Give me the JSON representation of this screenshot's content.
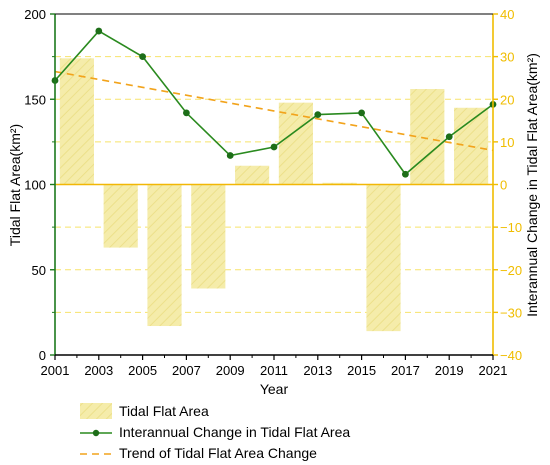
{
  "colors": {
    "bar_fill": "#f5ecaa",
    "bar_hatch": "#ece08a",
    "line": "#2a8a1f",
    "line_marker": "#1d6e18",
    "trend": "#f2a31b",
    "left_axis": "#1d7a1d",
    "right_axis": "#f0bd00",
    "grid": "#f7e36b",
    "zero_line": "#f2b705"
  },
  "chart_data": {
    "type": "bar",
    "xlabel": "Year",
    "ylabel_left": "Tidal Flat Area(km²)",
    "ylabel_right": "Interannual Change in Tidal Flat Area(km²)",
    "x_range": [
      2001,
      2021
    ],
    "x_ticks": [
      "2001",
      "2003",
      "2005",
      "2007",
      "2009",
      "2011",
      "2013",
      "2015",
      "2017",
      "2019",
      "2021"
    ],
    "y_left": {
      "range": [
        0,
        200
      ],
      "ticks": [
        "0",
        "50",
        "100",
        "150",
        "200"
      ]
    },
    "y_right": {
      "range": [
        -40,
        40
      ],
      "ticks": [
        "40",
        "30",
        "20",
        "10",
        "0",
        "−10",
        "−20",
        "−30",
        "−40"
      ]
    },
    "grid": "horizontal dashed at right-axis ticks",
    "legend_position": "bottom",
    "series": [
      {
        "name": "Tidal Flat Area",
        "kind": "bar",
        "axis": "left",
        "x": [
          2002,
          2004,
          2006,
          2008,
          2010,
          2012,
          2014,
          2016,
          2018,
          2020
        ],
        "values": [
          174,
          63,
          17,
          39,
          111,
          148,
          101,
          14,
          156,
          145
        ]
      },
      {
        "name": "Interannual Change in Tidal Flat Area",
        "kind": "line",
        "axis": "left",
        "x": [
          2001,
          2003,
          2005,
          2007,
          2009,
          2011,
          2013,
          2015,
          2017,
          2019,
          2021
        ],
        "values": [
          161,
          190,
          175,
          142,
          117,
          122,
          141,
          142,
          106,
          128,
          147
        ]
      },
      {
        "name": "Trend of Tidal Flat Area Change",
        "kind": "trend",
        "axis": "right",
        "x": [
          2001,
          2021
        ],
        "values": [
          26.5,
          8
        ]
      }
    ]
  }
}
